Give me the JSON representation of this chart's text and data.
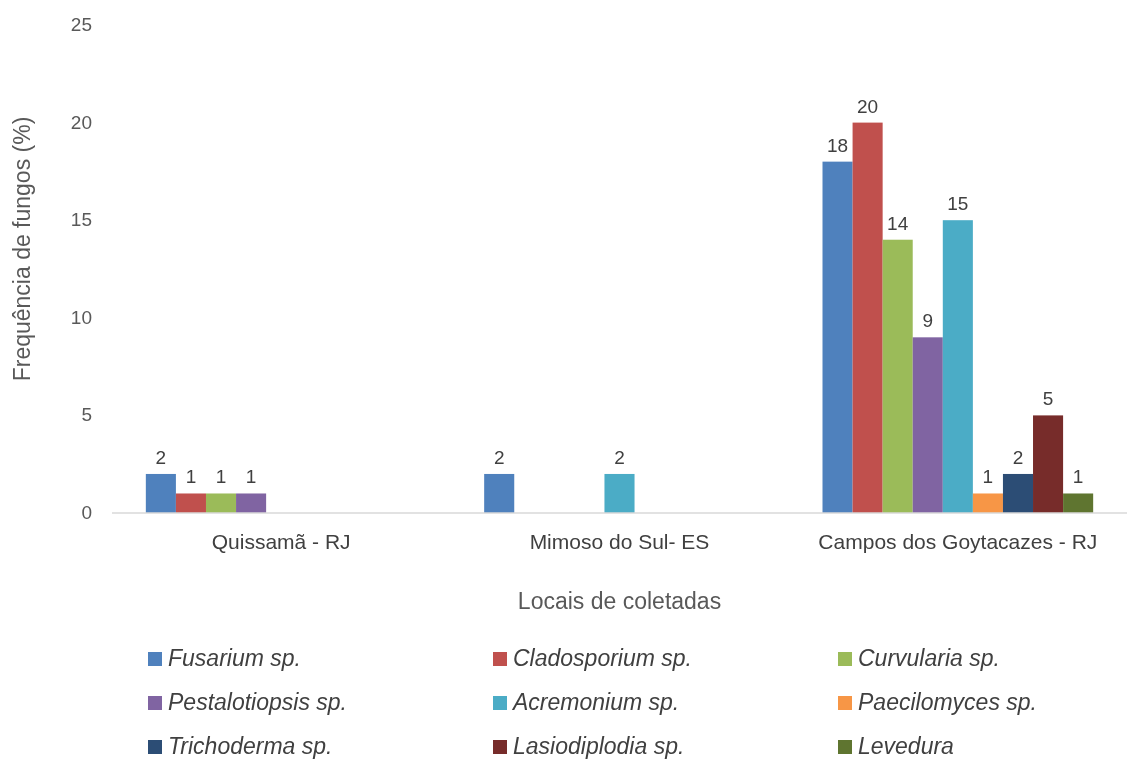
{
  "chart_data": {
    "type": "bar",
    "xlabel": "Locais de coletadas",
    "ylabel": "Frequência de fungos (%)",
    "categories": [
      "Quissamã - RJ",
      "Mimoso do Sul- ES",
      "Campos dos Goytacazes - RJ"
    ],
    "series": [
      {
        "name": "Fusarium sp.",
        "color": "#4f81bd",
        "values": [
          2,
          2,
          18
        ]
      },
      {
        "name": "Cladosporium sp.",
        "color": "#c0504d",
        "values": [
          1,
          null,
          20
        ]
      },
      {
        "name": "Curvularia sp.",
        "color": "#9bbb59",
        "values": [
          1,
          null,
          14
        ]
      },
      {
        "name": "Pestalotiopsis sp.",
        "color": "#8064a2",
        "values": [
          1,
          null,
          9
        ]
      },
      {
        "name": "Acremonium sp.",
        "color": "#4bacc6",
        "values": [
          null,
          2,
          15
        ]
      },
      {
        "name": "Paecilomyces sp.",
        "color": "#f79646",
        "values": [
          null,
          null,
          1
        ]
      },
      {
        "name": "Trichoderma sp.",
        "color": "#2c4d75",
        "values": [
          null,
          null,
          2
        ]
      },
      {
        "name": "Lasiodiplodia sp.",
        "color": "#772c2a",
        "values": [
          null,
          null,
          5
        ]
      },
      {
        "name": "Levedura",
        "color": "#5f7530",
        "values": [
          null,
          null,
          1
        ]
      }
    ],
    "ylim": [
      0,
      25
    ],
    "yticks": [
      0,
      5,
      10,
      15,
      20,
      25
    ],
    "grid": false,
    "legend": "bottom",
    "data_labels": true
  }
}
